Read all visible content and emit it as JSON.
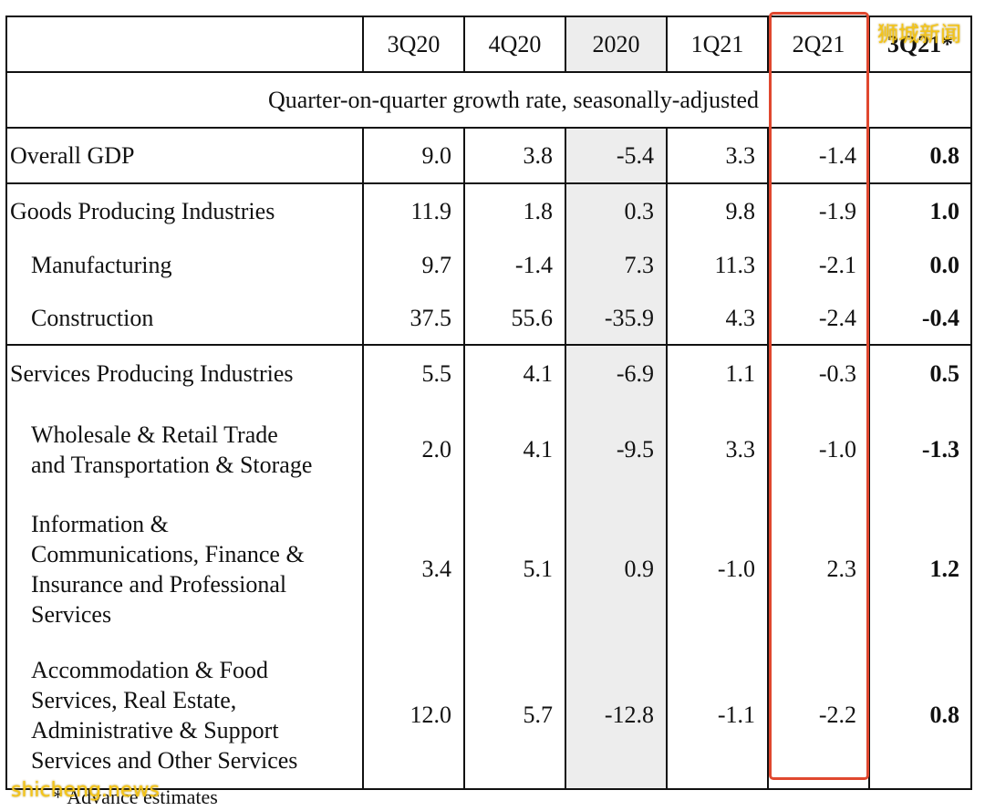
{
  "header": {
    "blank": "",
    "columns": [
      "3Q20",
      "4Q20",
      "2020",
      "1Q21",
      "2Q21",
      "3Q21*"
    ]
  },
  "subheader": "Quarter-on-quarter growth rate, seasonally-adjusted",
  "rows": [
    {
      "label": "Overall GDP",
      "values": [
        "9.0",
        "3.8",
        "-5.4",
        "3.3",
        "-1.4",
        "0.8"
      ]
    },
    {
      "label": "Goods Producing Industries",
      "values": [
        "11.9",
        "1.8",
        "0.3",
        "9.8",
        "-1.9",
        "1.0"
      ]
    },
    {
      "label": "Manufacturing",
      "values": [
        "9.7",
        "-1.4",
        "7.3",
        "11.3",
        "-2.1",
        "0.0"
      ]
    },
    {
      "label": "Construction",
      "values": [
        "37.5",
        "55.6",
        "-35.9",
        "4.3",
        "-2.4",
        "-0.4"
      ]
    },
    {
      "label": "Services Producing Industries",
      "values": [
        "5.5",
        "4.1",
        "-6.9",
        "1.1",
        "-0.3",
        "0.5"
      ]
    },
    {
      "label_lines": [
        "Wholesale & Retail Trade",
        "and Transportation & Storage"
      ],
      "values": [
        "2.0",
        "4.1",
        "-9.5",
        "3.3",
        "-1.0",
        "-1.3"
      ]
    },
    {
      "label_lines": [
        "Information &",
        "Communications, Finance &",
        "Insurance and Professional",
        "Services"
      ],
      "values": [
        "3.4",
        "5.1",
        "0.9",
        "-1.0",
        "2.3",
        "1.2"
      ]
    },
    {
      "label_lines": [
        "Accommodation & Food",
        "Services, Real Estate,",
        "Administrative & Support",
        "Services and Other Services"
      ],
      "values": [
        "12.0",
        "5.7",
        "-12.8",
        "-1.1",
        "-2.2",
        "0.8"
      ]
    }
  ],
  "footnote": "* Advance estimates",
  "watermark_top": "狮城新闻",
  "watermark_bottom": "shicheng.news",
  "colors": {
    "highlight": "#e0482f",
    "shade": "#ededed",
    "watermark": "#f5c518"
  }
}
